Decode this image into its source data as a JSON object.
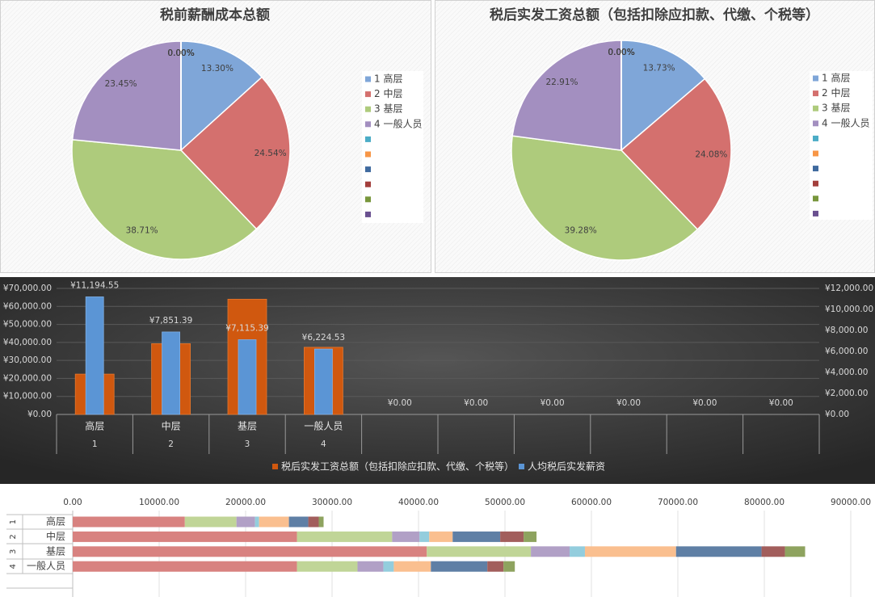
{
  "chart_data": [
    {
      "type": "pie",
      "title": "税前薪酬成本总额",
      "categories": [
        "1 高层",
        "2 中层",
        "3 基层",
        "4 一般人员",
        null,
        null,
        null,
        null,
        null,
        null
      ],
      "values": [
        13.3,
        24.54,
        38.71,
        23.45,
        0,
        0,
        0,
        0,
        0,
        0
      ],
      "value_labels": [
        "13.30%",
        "24.54%",
        "38.71%",
        "23.45%",
        "0.00%",
        "0.00%",
        "0.00%",
        "0.00%",
        "0.00%",
        "0.00%"
      ],
      "colors": [
        "#7fa6d8",
        "#d4706e",
        "#aecb7c",
        "#a38fc0",
        "#4bacc6",
        "#f79646",
        "#3f6a9e",
        "#a33f3c",
        "#78963c",
        "#6a5090"
      ]
    },
    {
      "type": "pie",
      "title": "税后实发工资总额（包括扣除应扣款、代缴、个税等）",
      "categories": [
        "1 高层",
        "2 中层",
        "3 基层",
        "4 一般人员",
        null,
        null,
        null,
        null,
        null,
        null
      ],
      "values": [
        13.73,
        24.08,
        39.28,
        22.91,
        0,
        0,
        0,
        0,
        0,
        0
      ],
      "value_labels": [
        "13.73%",
        "24.08%",
        "39.28%",
        "22.91%",
        "0.00%",
        "0.00%",
        "0.00%",
        "0.00%",
        "0.00%",
        "0.00%"
      ],
      "colors": [
        "#7fa6d8",
        "#d4706e",
        "#aecb7c",
        "#a38fc0",
        "#4bacc6",
        "#f79646",
        "#3f6a9e",
        "#a33f3c",
        "#78963c",
        "#6a5090"
      ]
    },
    {
      "type": "bar",
      "categories": [
        "高层",
        "中层",
        "基层",
        "一般人员",
        null,
        null,
        null,
        null,
        null,
        null
      ],
      "category_numbers": [
        "1",
        "2",
        "3",
        "4",
        null,
        null,
        null,
        null,
        null,
        null
      ],
      "series": [
        {
          "name": "税后实发工资总额（包括扣除应扣款、代缴、个税等）",
          "color": "#d0580f",
          "values": [
            22400,
            39300,
            64000,
            37300,
            0,
            0,
            0,
            0,
            0,
            0
          ]
        },
        {
          "name": "人均税后实发薪资",
          "color": "#5b95d5",
          "axis": "y2",
          "values": [
            11194.55,
            7851.39,
            7115.39,
            6224.53,
            0,
            0,
            0,
            0,
            0,
            0
          ],
          "value_labels": [
            "¥11,194.55",
            "¥7,851.39",
            "¥7,115.39",
            "¥6,224.53",
            "¥0.00",
            "¥0.00",
            "¥0.00",
            "¥0.00",
            "¥0.00",
            "¥0.00"
          ]
        }
      ],
      "ylim": [
        0,
        70000
      ],
      "yticks": [
        {
          "value": 0,
          "label": "¥0.00"
        },
        {
          "value": 10000,
          "label": "¥10,000.00"
        },
        {
          "value": 20000,
          "label": "¥20,000.00"
        },
        {
          "value": 30000,
          "label": "¥30,000.00"
        },
        {
          "value": 40000,
          "label": "¥40,000.00"
        },
        {
          "value": 50000,
          "label": "¥50,000.00"
        },
        {
          "value": 60000,
          "label": "¥60,000.00"
        },
        {
          "value": 70000,
          "label": "¥70,000.00"
        }
      ],
      "y2lim": [
        0,
        12000
      ],
      "y2ticks": [
        {
          "value": 0,
          "label": "¥0.00"
        },
        {
          "value": 2000,
          "label": "¥2,000.00"
        },
        {
          "value": 4000,
          "label": "¥4,000.00"
        },
        {
          "value": 6000,
          "label": "¥6,000.00"
        },
        {
          "value": 8000,
          "label": "¥8,000.00"
        },
        {
          "value": 10000,
          "label": "¥10,000.00"
        },
        {
          "value": 12000,
          "label": "¥12,000.00"
        }
      ],
      "grid": true,
      "legend": "bottom"
    },
    {
      "type": "stacked-barh",
      "categories": [
        "高层",
        "中层",
        "基层",
        "一般人员"
      ],
      "category_numbers": [
        "1",
        "2",
        "3",
        "4"
      ],
      "series": [
        {
          "color": "#d88280",
          "values": [
            12970,
            25940,
            40960,
            25940
          ]
        },
        {
          "color": "#c0d597",
          "values": [
            5970,
            11010,
            12040,
            7000
          ]
        },
        {
          "color": "#b1a0c6",
          "values": [
            2150,
            3170,
            4480,
            2990
          ]
        },
        {
          "color": "#93cddd",
          "values": [
            470,
            1120,
            1770,
            1210
          ]
        },
        {
          "color": "#fabf8f",
          "values": [
            3450,
            2710,
            10540,
            4290
          ]
        },
        {
          "color": "#5f7fa5",
          "values": [
            2240,
            5500,
            9890,
            6530
          ]
        },
        {
          "color": "#a25e5c",
          "values": [
            1210,
            2710,
            2710,
            1870
          ]
        },
        {
          "color": "#8ea35f",
          "values": [
            560,
            1490,
            2330,
            1310
          ]
        }
      ],
      "xlim": [
        0,
        90000
      ],
      "xticks": [
        {
          "value": 0,
          "label": "0.00"
        },
        {
          "value": 10000,
          "label": "10000.00"
        },
        {
          "value": 20000,
          "label": "20000.00"
        },
        {
          "value": 30000,
          "label": "30000.00"
        },
        {
          "value": 40000,
          "label": "40000.00"
        },
        {
          "value": 50000,
          "label": "50000.00"
        },
        {
          "value": 60000,
          "label": "60000.00"
        },
        {
          "value": 70000,
          "label": "70000.00"
        },
        {
          "value": 80000,
          "label": "80000.00"
        },
        {
          "value": 90000,
          "label": "90000.00"
        }
      ],
      "grid": true
    }
  ]
}
